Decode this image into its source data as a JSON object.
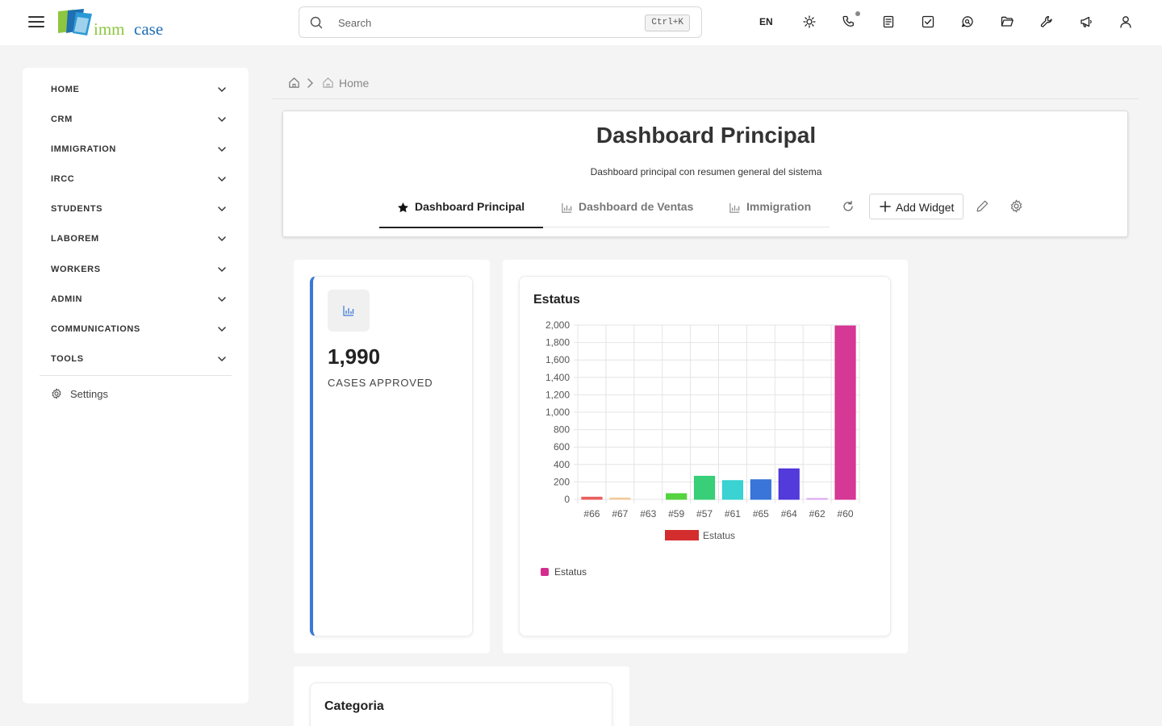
{
  "header": {
    "logo": "imm case",
    "logo_word1": "imm",
    "logo_word2": "case",
    "search_placeholder": "Search",
    "search_shortcut": "Ctrl+K",
    "language": "EN"
  },
  "sidebar": {
    "items": [
      {
        "label": "HOME"
      },
      {
        "label": "CRM"
      },
      {
        "label": "IMMIGRATION"
      },
      {
        "label": "IRCC"
      },
      {
        "label": "STUDENTS"
      },
      {
        "label": "LABOREM"
      },
      {
        "label": "WORKERS"
      },
      {
        "label": "ADMIN"
      },
      {
        "label": "COMMUNICATIONS"
      },
      {
        "label": "TOOLS"
      }
    ],
    "settings_label": "Settings"
  },
  "breadcrumb": {
    "home_label": "Home"
  },
  "dashboard": {
    "title": "Dashboard Principal",
    "subtitle": "Dashboard principal con resumen general del sistema",
    "tabs": [
      {
        "label": "Dashboard Principal",
        "icon": "star-icon",
        "active": true
      },
      {
        "label": "Dashboard de Ventas",
        "icon": "bar-chart-icon",
        "active": false
      },
      {
        "label": "Immigration",
        "icon": "bar-chart-icon",
        "active": false
      }
    ],
    "add_widget_label": "Add Widget"
  },
  "widgets": {
    "stat": {
      "value": "1,990",
      "label": "CASES APPROVED",
      "accent": "#3a78d8"
    },
    "status_chart_title": "Estatus",
    "status_legend_label": "Estatus",
    "categoria_title": "Categoria"
  },
  "chart_data": {
    "type": "bar",
    "title": "Estatus",
    "categories": [
      "#66",
      "#67",
      "#63",
      "#59",
      "#57",
      "#61",
      "#65",
      "#64",
      "#62",
      "#60"
    ],
    "series": [
      {
        "name": "Estatus",
        "values": [
          25,
          15,
          0,
          65,
          265,
          215,
          225,
          350,
          10,
          1990
        ],
        "colors": [
          "#e85a5a",
          "#f2c79a",
          "#bdbdbd",
          "#4cd137",
          "#2ecc71",
          "#2fd0d0",
          "#2f6fd8",
          "#4a2fd8",
          "#d9a6f0",
          "#d42d8f"
        ]
      }
    ],
    "ylim": [
      0,
      2000
    ],
    "yticks": [
      0,
      200,
      400,
      600,
      800,
      1000,
      1200,
      1400,
      1600,
      1800,
      2000
    ],
    "ytick_labels": [
      "0",
      "200",
      "400",
      "600",
      "800",
      "1,000",
      "1,200",
      "1,400",
      "1,600",
      "1,800",
      "2,000"
    ],
    "grid": true,
    "legend_position": "bottom",
    "legend_color": "#d42d2d"
  }
}
